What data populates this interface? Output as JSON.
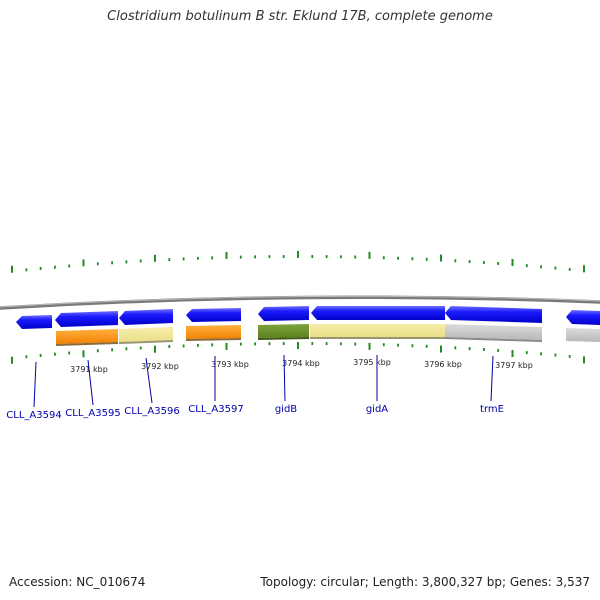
{
  "title": "Clostridium botulinum B str. Eklund 17B, complete genome",
  "footer": {
    "accession": "Accession: NC_010674",
    "topology": "Topology: circular; Length: 3,800,327 bp; Genes: 3,537"
  },
  "colors": {
    "cds_arrow": "#0000ee",
    "orange_block": "#ff8c00",
    "yellow_block": "#f0e68c",
    "olive_block": "#6b8e23",
    "gray_block": "#c0c0c0",
    "backbone": "#808080",
    "tick": "#228b22",
    "gene_label": "#0000aa"
  },
  "scale_labels": [
    "3791 kbp",
    "3792 kbp",
    "3793 kbp",
    "3794 kbp",
    "3795 kbp",
    "3796 kbp",
    "3797 kbp"
  ],
  "genes": [
    {
      "name": "CLL_A3594",
      "block": "none"
    },
    {
      "name": "CLL_A3595",
      "block": "orange"
    },
    {
      "name": "CLL_A3596",
      "block": "yellow"
    },
    {
      "name": "CLL_A3597",
      "block": "orange"
    },
    {
      "name": "gidB",
      "block": "olive"
    },
    {
      "name": "gidA",
      "block": "yellow"
    },
    {
      "name": "trmE",
      "block": "gray"
    }
  ]
}
